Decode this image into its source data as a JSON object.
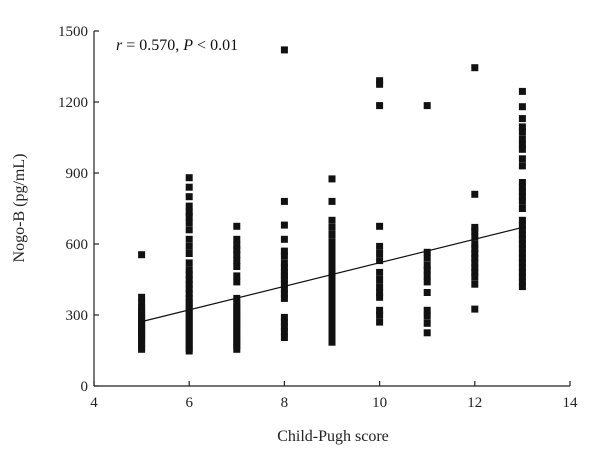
{
  "chart_data": {
    "type": "scatter",
    "xlabel": "Child-Pugh score",
    "ylabel": "Nogo-B (pg/mL)",
    "xlim": [
      4,
      14
    ],
    "ylim": [
      0,
      1500
    ],
    "xticks": [
      4,
      6,
      8,
      10,
      12,
      14
    ],
    "yticks": [
      0,
      300,
      600,
      900,
      1200,
      1500
    ],
    "grid": false,
    "annotation": {
      "r_symbol": "r",
      "r_part": " = 0.570, ",
      "p_symbol": "P",
      "p_part": " < 0.01"
    },
    "trend_line": {
      "x": [
        5,
        13
      ],
      "y": [
        272,
        670
      ]
    },
    "points": [
      {
        "x": 5,
        "y": 555
      },
      {
        "x": 5,
        "y": 375
      },
      {
        "x": 5,
        "y": 350
      },
      {
        "x": 5,
        "y": 330
      },
      {
        "x": 5,
        "y": 315
      },
      {
        "x": 5,
        "y": 300
      },
      {
        "x": 5,
        "y": 290
      },
      {
        "x": 5,
        "y": 280
      },
      {
        "x": 5,
        "y": 265
      },
      {
        "x": 5,
        "y": 255
      },
      {
        "x": 5,
        "y": 245
      },
      {
        "x": 5,
        "y": 235
      },
      {
        "x": 5,
        "y": 225
      },
      {
        "x": 5,
        "y": 215
      },
      {
        "x": 5,
        "y": 205
      },
      {
        "x": 5,
        "y": 195
      },
      {
        "x": 5,
        "y": 180
      },
      {
        "x": 5,
        "y": 165
      },
      {
        "x": 5,
        "y": 155
      },
      {
        "x": 6,
        "y": 880
      },
      {
        "x": 6,
        "y": 840
      },
      {
        "x": 6,
        "y": 800
      },
      {
        "x": 6,
        "y": 760
      },
      {
        "x": 6,
        "y": 735
      },
      {
        "x": 6,
        "y": 715
      },
      {
        "x": 6,
        "y": 690
      },
      {
        "x": 6,
        "y": 660
      },
      {
        "x": 6,
        "y": 620
      },
      {
        "x": 6,
        "y": 590
      },
      {
        "x": 6,
        "y": 560
      },
      {
        "x": 6,
        "y": 520
      },
      {
        "x": 6,
        "y": 490
      },
      {
        "x": 6,
        "y": 470
      },
      {
        "x": 6,
        "y": 450
      },
      {
        "x": 6,
        "y": 430
      },
      {
        "x": 6,
        "y": 410
      },
      {
        "x": 6,
        "y": 390
      },
      {
        "x": 6,
        "y": 370
      },
      {
        "x": 6,
        "y": 355
      },
      {
        "x": 6,
        "y": 340
      },
      {
        "x": 6,
        "y": 325
      },
      {
        "x": 6,
        "y": 310
      },
      {
        "x": 6,
        "y": 295
      },
      {
        "x": 6,
        "y": 280
      },
      {
        "x": 6,
        "y": 265
      },
      {
        "x": 6,
        "y": 250
      },
      {
        "x": 6,
        "y": 235
      },
      {
        "x": 6,
        "y": 220
      },
      {
        "x": 6,
        "y": 205
      },
      {
        "x": 6,
        "y": 190
      },
      {
        "x": 6,
        "y": 175
      },
      {
        "x": 6,
        "y": 160
      },
      {
        "x": 6,
        "y": 148
      },
      {
        "x": 7,
        "y": 675
      },
      {
        "x": 7,
        "y": 620
      },
      {
        "x": 7,
        "y": 595
      },
      {
        "x": 7,
        "y": 575
      },
      {
        "x": 7,
        "y": 555
      },
      {
        "x": 7,
        "y": 530
      },
      {
        "x": 7,
        "y": 505
      },
      {
        "x": 7,
        "y": 465
      },
      {
        "x": 7,
        "y": 440
      },
      {
        "x": 7,
        "y": 370
      },
      {
        "x": 7,
        "y": 350
      },
      {
        "x": 7,
        "y": 335
      },
      {
        "x": 7,
        "y": 320
      },
      {
        "x": 7,
        "y": 305
      },
      {
        "x": 7,
        "y": 290
      },
      {
        "x": 7,
        "y": 275
      },
      {
        "x": 7,
        "y": 260
      },
      {
        "x": 7,
        "y": 245
      },
      {
        "x": 7,
        "y": 230
      },
      {
        "x": 7,
        "y": 215
      },
      {
        "x": 7,
        "y": 200
      },
      {
        "x": 7,
        "y": 185
      },
      {
        "x": 7,
        "y": 170
      },
      {
        "x": 7,
        "y": 155
      },
      {
        "x": 8,
        "y": 1420
      },
      {
        "x": 8,
        "y": 780
      },
      {
        "x": 8,
        "y": 680
      },
      {
        "x": 8,
        "y": 620
      },
      {
        "x": 8,
        "y": 570
      },
      {
        "x": 8,
        "y": 550
      },
      {
        "x": 8,
        "y": 520
      },
      {
        "x": 8,
        "y": 500
      },
      {
        "x": 8,
        "y": 480
      },
      {
        "x": 8,
        "y": 465
      },
      {
        "x": 8,
        "y": 450
      },
      {
        "x": 8,
        "y": 430
      },
      {
        "x": 8,
        "y": 410
      },
      {
        "x": 8,
        "y": 390
      },
      {
        "x": 8,
        "y": 370
      },
      {
        "x": 8,
        "y": 290
      },
      {
        "x": 8,
        "y": 270
      },
      {
        "x": 8,
        "y": 250
      },
      {
        "x": 8,
        "y": 230
      },
      {
        "x": 8,
        "y": 205
      },
      {
        "x": 9,
        "y": 875
      },
      {
        "x": 9,
        "y": 780
      },
      {
        "x": 9,
        "y": 700
      },
      {
        "x": 9,
        "y": 670
      },
      {
        "x": 9,
        "y": 640
      },
      {
        "x": 9,
        "y": 610
      },
      {
        "x": 9,
        "y": 585
      },
      {
        "x": 9,
        "y": 560
      },
      {
        "x": 9,
        "y": 540
      },
      {
        "x": 9,
        "y": 520
      },
      {
        "x": 9,
        "y": 500
      },
      {
        "x": 9,
        "y": 480
      },
      {
        "x": 9,
        "y": 460
      },
      {
        "x": 9,
        "y": 440
      },
      {
        "x": 9,
        "y": 420
      },
      {
        "x": 9,
        "y": 400
      },
      {
        "x": 9,
        "y": 380
      },
      {
        "x": 9,
        "y": 360
      },
      {
        "x": 9,
        "y": 340
      },
      {
        "x": 9,
        "y": 320
      },
      {
        "x": 9,
        "y": 300
      },
      {
        "x": 9,
        "y": 280
      },
      {
        "x": 9,
        "y": 265
      },
      {
        "x": 9,
        "y": 250
      },
      {
        "x": 9,
        "y": 235
      },
      {
        "x": 9,
        "y": 220
      },
      {
        "x": 9,
        "y": 200
      },
      {
        "x": 9,
        "y": 185
      },
      {
        "x": 10,
        "y": 1290
      },
      {
        "x": 10,
        "y": 1275
      },
      {
        "x": 10,
        "y": 1185
      },
      {
        "x": 10,
        "y": 675
      },
      {
        "x": 10,
        "y": 590
      },
      {
        "x": 10,
        "y": 560
      },
      {
        "x": 10,
        "y": 530
      },
      {
        "x": 10,
        "y": 480
      },
      {
        "x": 10,
        "y": 450
      },
      {
        "x": 10,
        "y": 420
      },
      {
        "x": 10,
        "y": 395
      },
      {
        "x": 10,
        "y": 375
      },
      {
        "x": 10,
        "y": 320
      },
      {
        "x": 10,
        "y": 300
      },
      {
        "x": 10,
        "y": 270
      },
      {
        "x": 11,
        "y": 1185
      },
      {
        "x": 11,
        "y": 565
      },
      {
        "x": 11,
        "y": 540
      },
      {
        "x": 11,
        "y": 510
      },
      {
        "x": 11,
        "y": 490
      },
      {
        "x": 11,
        "y": 465
      },
      {
        "x": 11,
        "y": 440
      },
      {
        "x": 11,
        "y": 395
      },
      {
        "x": 11,
        "y": 320
      },
      {
        "x": 11,
        "y": 295
      },
      {
        "x": 11,
        "y": 265
      },
      {
        "x": 11,
        "y": 225
      },
      {
        "x": 12,
        "y": 1345
      },
      {
        "x": 12,
        "y": 810
      },
      {
        "x": 12,
        "y": 670
      },
      {
        "x": 12,
        "y": 655
      },
      {
        "x": 12,
        "y": 630
      },
      {
        "x": 12,
        "y": 600
      },
      {
        "x": 12,
        "y": 580
      },
      {
        "x": 12,
        "y": 560
      },
      {
        "x": 12,
        "y": 540
      },
      {
        "x": 12,
        "y": 520
      },
      {
        "x": 12,
        "y": 500
      },
      {
        "x": 12,
        "y": 480
      },
      {
        "x": 12,
        "y": 460
      },
      {
        "x": 12,
        "y": 430
      },
      {
        "x": 12,
        "y": 325
      },
      {
        "x": 13,
        "y": 1245
      },
      {
        "x": 13,
        "y": 1180
      },
      {
        "x": 13,
        "y": 1130
      },
      {
        "x": 13,
        "y": 1095
      },
      {
        "x": 13,
        "y": 1075
      },
      {
        "x": 13,
        "y": 1045
      },
      {
        "x": 13,
        "y": 1020
      },
      {
        "x": 13,
        "y": 1000
      },
      {
        "x": 13,
        "y": 960
      },
      {
        "x": 13,
        "y": 930
      },
      {
        "x": 13,
        "y": 860
      },
      {
        "x": 13,
        "y": 840
      },
      {
        "x": 13,
        "y": 820
      },
      {
        "x": 13,
        "y": 800
      },
      {
        "x": 13,
        "y": 780
      },
      {
        "x": 13,
        "y": 750
      },
      {
        "x": 13,
        "y": 700
      },
      {
        "x": 13,
        "y": 680
      },
      {
        "x": 13,
        "y": 660
      },
      {
        "x": 13,
        "y": 640
      },
      {
        "x": 13,
        "y": 620
      },
      {
        "x": 13,
        "y": 600
      },
      {
        "x": 13,
        "y": 580
      },
      {
        "x": 13,
        "y": 560
      },
      {
        "x": 13,
        "y": 540
      },
      {
        "x": 13,
        "y": 520
      },
      {
        "x": 13,
        "y": 500
      },
      {
        "x": 13,
        "y": 480
      },
      {
        "x": 13,
        "y": 460
      },
      {
        "x": 13,
        "y": 440
      },
      {
        "x": 13,
        "y": 420
      }
    ]
  }
}
